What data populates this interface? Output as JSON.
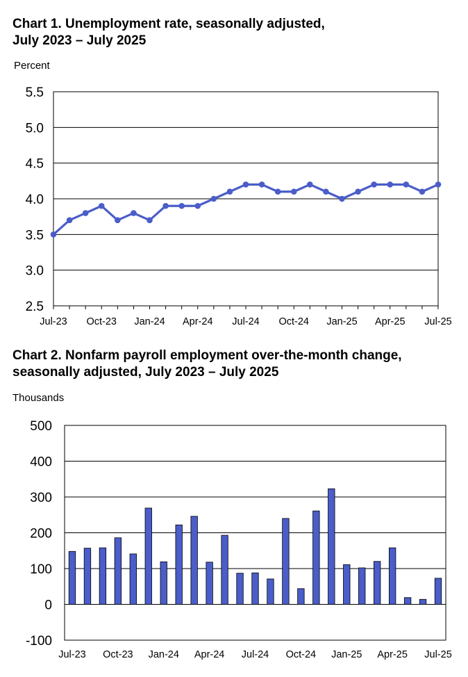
{
  "chart_data": [
    {
      "type": "line",
      "title_line1": "Chart 1. Unemployment rate, seasonally adjusted,",
      "title_line2": "July 2023 – July 2025",
      "ylabel": "Percent",
      "ylim": [
        2.5,
        5.5
      ],
      "yticks": [
        "5.5",
        "5.0",
        "4.5",
        "4.0",
        "3.5",
        "3.0",
        "2.5"
      ],
      "xticks": [
        "Jul-23",
        "Oct-23",
        "Jan-24",
        "Apr-24",
        "Jul-24",
        "Oct-24",
        "Jan-25",
        "Apr-25",
        "Jul-25"
      ],
      "x": [
        "Jul-23",
        "Aug-23",
        "Sep-23",
        "Oct-23",
        "Nov-23",
        "Dec-23",
        "Jan-24",
        "Feb-24",
        "Mar-24",
        "Apr-24",
        "May-24",
        "Jun-24",
        "Jul-24",
        "Aug-24",
        "Sep-24",
        "Oct-24",
        "Nov-24",
        "Dec-24",
        "Jan-25",
        "Feb-25",
        "Mar-25",
        "Apr-25",
        "May-25",
        "Jun-25",
        "Jul-25"
      ],
      "values": [
        3.5,
        3.7,
        3.8,
        3.9,
        3.7,
        3.8,
        3.7,
        3.9,
        3.9,
        3.9,
        4.0,
        4.1,
        4.2,
        4.2,
        4.1,
        4.1,
        4.2,
        4.1,
        4.0,
        4.1,
        4.2,
        4.2,
        4.2,
        4.1,
        4.2
      ],
      "grid": true,
      "color": "#4a5dc9"
    },
    {
      "type": "bar",
      "title_line1": "Chart 2. Nonfarm payroll employment over-the-month change,",
      "title_line2": "seasonally adjusted, July 2023 – July 2025",
      "ylabel": "Thousands",
      "ylim": [
        -100,
        500
      ],
      "yticks": [
        "500",
        "400",
        "300",
        "200",
        "100",
        "0",
        "-100"
      ],
      "xticks": [
        "Jul-23",
        "Oct-23",
        "Jan-24",
        "Apr-24",
        "Jul-24",
        "Oct-24",
        "Jan-25",
        "Apr-25",
        "Jul-25"
      ],
      "x": [
        "Jul-23",
        "Aug-23",
        "Sep-23",
        "Oct-23",
        "Nov-23",
        "Dec-23",
        "Jan-24",
        "Feb-24",
        "Mar-24",
        "Apr-24",
        "May-24",
        "Jun-24",
        "Jul-24",
        "Aug-24",
        "Sep-24",
        "Oct-24",
        "Nov-24",
        "Dec-24",
        "Jan-25",
        "Feb-25",
        "Mar-25",
        "Apr-25",
        "May-25",
        "Jun-25",
        "Jul-25"
      ],
      "values": [
        148,
        157,
        158,
        186,
        141,
        269,
        119,
        222,
        246,
        118,
        193,
        87,
        88,
        71,
        240,
        44,
        261,
        323,
        111,
        102,
        120,
        158,
        19,
        14,
        73
      ],
      "grid": true,
      "color": "#4a5dc9"
    }
  ]
}
